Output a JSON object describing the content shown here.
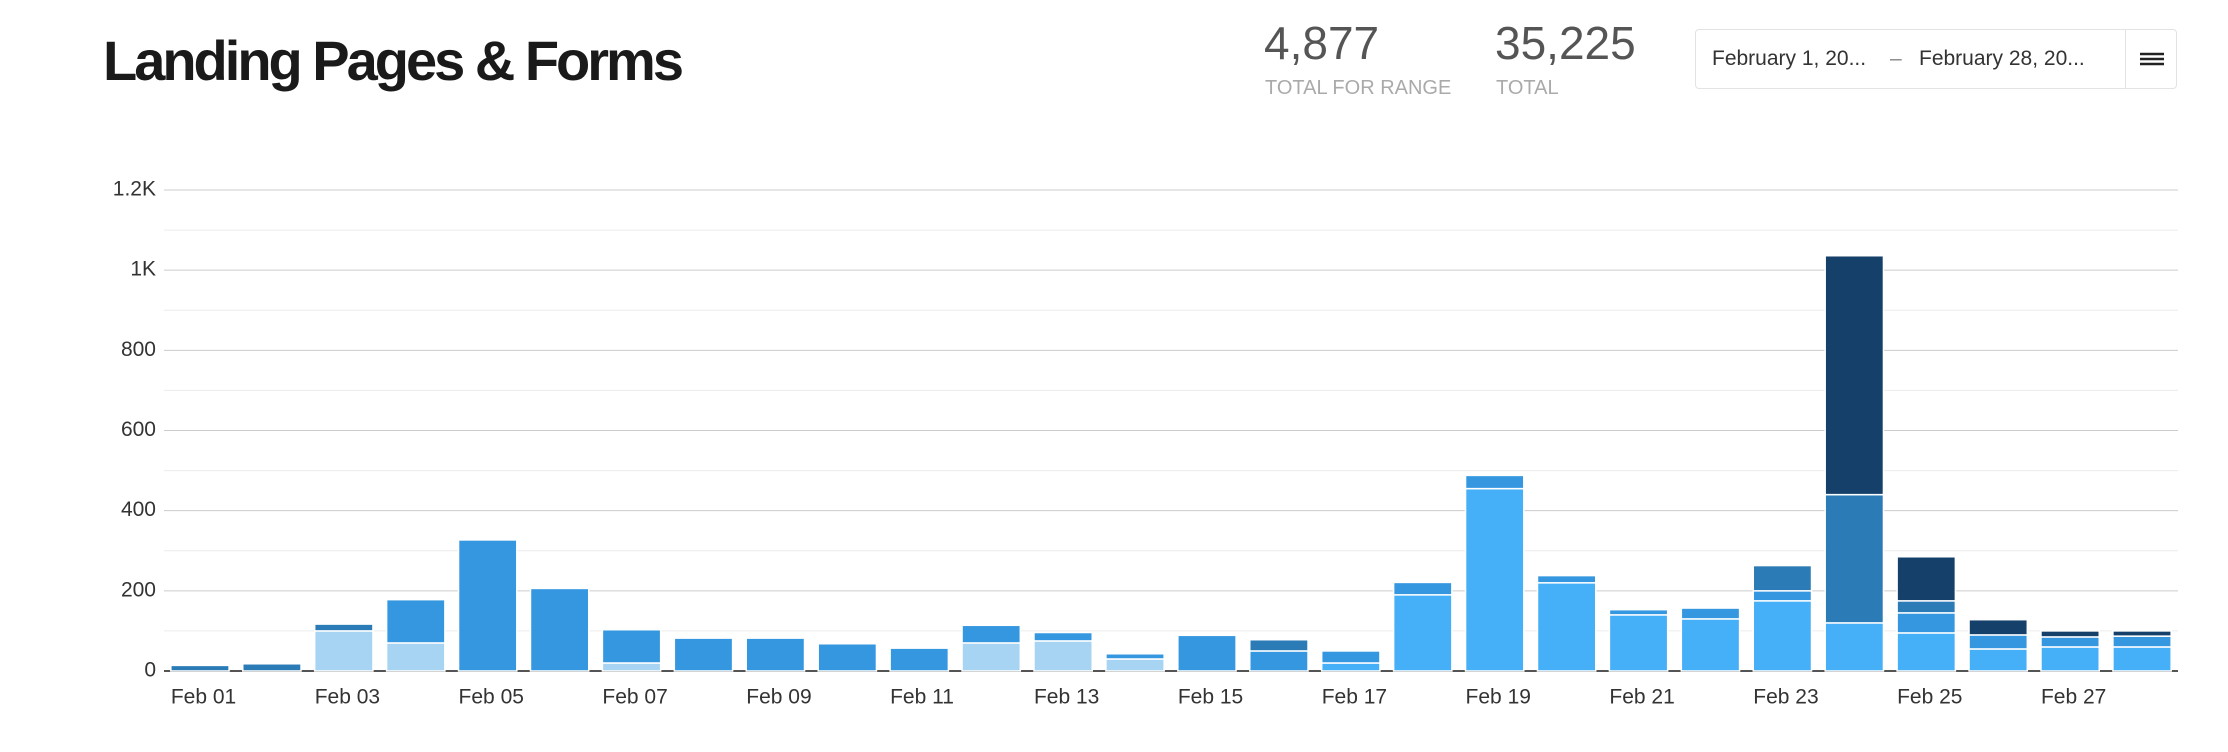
{
  "header": {
    "title": "Landing Pages & Forms",
    "stats": [
      {
        "value": "4,877",
        "label": "TOTAL FOR RANGE"
      },
      {
        "value": "35,225",
        "label": "TOTAL"
      }
    ],
    "date_range": {
      "start": "February 1, 20...",
      "separator": "–",
      "end": "February 28, 20..."
    }
  },
  "chart_data": {
    "type": "stacked_bar",
    "categories": [
      "Feb 01",
      null,
      "Feb 03",
      null,
      "Feb 05",
      null,
      "Feb 07",
      null,
      "Feb 09",
      null,
      "Feb 11",
      null,
      "Feb 13",
      null,
      "Feb 15",
      null,
      "Feb 17",
      null,
      "Feb 19",
      null,
      "Feb 21",
      null,
      "Feb 23",
      null,
      "Feb 25",
      null,
      "Feb 27",
      null
    ],
    "series": [
      {
        "color": "#a6d4f2",
        "values": [
          0,
          0,
          100,
          70,
          0,
          0,
          20,
          0,
          0,
          0,
          0,
          70,
          75,
          30,
          0,
          0,
          0,
          0,
          0,
          0,
          0,
          0,
          0,
          0,
          0,
          0,
          0,
          0
        ]
      },
      {
        "color": "#45b0f8",
        "values": [
          0,
          0,
          0,
          0,
          0,
          0,
          0,
          0,
          0,
          0,
          0,
          0,
          0,
          0,
          0,
          0,
          20,
          190,
          455,
          220,
          140,
          130,
          175,
          120,
          95,
          55,
          60,
          60
        ]
      },
      {
        "color": "#3497e0",
        "values": [
          0,
          0,
          0,
          108,
          327,
          206,
          83,
          82,
          82,
          68,
          57,
          44,
          21,
          13,
          89,
          50,
          30,
          31,
          33,
          18,
          13,
          27,
          25,
          0,
          50,
          35,
          25,
          27
        ]
      },
      {
        "color": "#2a7bb6",
        "values": [
          14,
          18,
          17,
          0,
          0,
          0,
          0,
          0,
          0,
          0,
          0,
          0,
          0,
          0,
          0,
          28,
          0,
          0,
          0,
          0,
          0,
          0,
          63,
          320,
          30,
          0,
          0,
          0
        ]
      },
      {
        "color": "#15406a",
        "values": [
          0,
          0,
          0,
          0,
          0,
          0,
          0,
          0,
          0,
          0,
          0,
          0,
          0,
          0,
          0,
          0,
          0,
          0,
          0,
          0,
          0,
          0,
          0,
          596,
          110,
          38,
          15,
          13
        ]
      }
    ],
    "ylim": [
      0,
      1200
    ],
    "yticks": [
      0,
      200,
      400,
      600,
      800,
      {
        "value": 1000,
        "label": "1K"
      },
      {
        "value": 1200,
        "label": "1.2K"
      }
    ],
    "minor_yticks": [
      100,
      300,
      500,
      700,
      900,
      1100
    ],
    "grid": true
  }
}
